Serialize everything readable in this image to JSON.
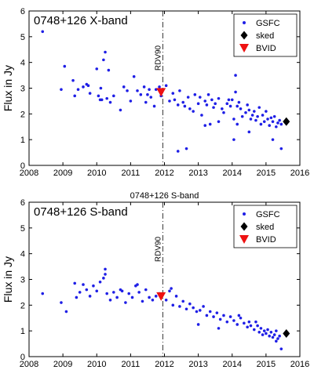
{
  "chart_data": [
    {
      "type": "scatter",
      "title": "",
      "panel_label": "0748+126  X-band",
      "ylabel": "Flux in Jy",
      "xlabel": "",
      "xlim": [
        2008,
        2016
      ],
      "ylim": [
        0,
        6
      ],
      "xticks": [
        "2008",
        "2009",
        "2010",
        "2011",
        "2012",
        "2013",
        "2014",
        "2015",
        "2016"
      ],
      "yticks": [
        "0",
        "1",
        "2",
        "3",
        "4",
        "5",
        "6"
      ],
      "grid": false,
      "legend": "top-right",
      "vline": {
        "x": 2011.95,
        "label": "RDV90"
      },
      "series": [
        {
          "name": "GSFC",
          "marker": "dot",
          "color": "#1f1fe6",
          "x": [
            2008.4,
            2008.95,
            2009.05,
            2009.3,
            2009.35,
            2009.45,
            2009.6,
            2009.7,
            2009.75,
            2009.8,
            2010.0,
            2010.05,
            2010.1,
            2010.12,
            2010.15,
            2010.2,
            2010.25,
            2010.3,
            2010.35,
            2010.4,
            2010.5,
            2010.7,
            2010.8,
            2010.9,
            2011.0,
            2011.1,
            2011.2,
            2011.3,
            2011.4,
            2011.45,
            2011.5,
            2011.55,
            2011.6,
            2011.7,
            2011.75,
            2011.85,
            2011.9,
            2012.05,
            2012.15,
            2012.25,
            2012.3,
            2012.4,
            2012.45,
            2012.55,
            2012.6,
            2012.7,
            2012.75,
            2012.85,
            2012.9,
            2013.0,
            2013.05,
            2013.1,
            2013.2,
            2013.25,
            2013.3,
            2013.4,
            2013.45,
            2013.5,
            2013.6,
            2013.7,
            2013.75,
            2013.85,
            2013.9,
            2013.95,
            2014.0,
            2014.05,
            2014.1,
            2014.15,
            2014.2,
            2014.25,
            2014.3,
            2014.4,
            2014.45,
            2014.5,
            2014.55,
            2014.6,
            2014.65,
            2014.7,
            2014.75,
            2014.8,
            2014.85,
            2014.9,
            2014.95,
            2015.0,
            2015.05,
            2015.1,
            2015.15,
            2015.2,
            2015.25,
            2015.3,
            2015.35,
            2015.4,
            2015.45,
            2012.4,
            2012.65,
            2013.35,
            2014.05,
            2014.15,
            2014.1,
            2013.2,
            2013.6,
            2014.5,
            2015.2,
            2015.45
          ],
          "y": [
            5.2,
            2.95,
            3.85,
            3.3,
            2.7,
            2.95,
            3.05,
            3.15,
            3.1,
            2.8,
            3.75,
            2.7,
            2.55,
            3.0,
            2.55,
            4.1,
            4.4,
            2.6,
            3.7,
            2.45,
            2.7,
            2.15,
            3.05,
            2.9,
            2.5,
            3.45,
            2.9,
            2.75,
            3.05,
            2.45,
            2.75,
            2.95,
            2.65,
            2.3,
            2.95,
            3.05,
            2.7,
            3.1,
            2.5,
            2.8,
            2.55,
            2.35,
            2.9,
            2.45,
            2.3,
            2.65,
            2.2,
            2.1,
            2.75,
            2.4,
            2.65,
            1.95,
            2.5,
            2.35,
            2.75,
            2.55,
            2.25,
            2.4,
            2.6,
            2.2,
            2.05,
            2.4,
            2.55,
            2.3,
            2.55,
            1.8,
            3.5,
            1.6,
            2.45,
            2.2,
            1.9,
            2.05,
            2.35,
            2.15,
            1.8,
            1.95,
            2.1,
            1.75,
            1.9,
            2.25,
            1.6,
            1.95,
            1.7,
            2.1,
            1.8,
            1.55,
            1.85,
            1.7,
            1.9,
            1.5,
            1.65,
            1.75,
            1.6,
            0.55,
            0.65,
            1.6,
            1.0,
            2.3,
            2.85,
            1.55,
            1.7,
            1.3,
            1.0,
            0.65
          ]
        },
        {
          "name": "sked",
          "marker": "diamond",
          "color": "#000000",
          "x": [
            2015.6
          ],
          "y": [
            1.7
          ]
        },
        {
          "name": "BVID",
          "marker": "triangle-down",
          "color": "#ee1111",
          "x": [
            2011.9
          ],
          "y": [
            2.85
          ]
        }
      ]
    },
    {
      "type": "scatter",
      "title": "0748+126 S-band",
      "panel_label": "0748+126  S-band",
      "ylabel": "Flux in Jy",
      "xlabel": "",
      "xlim": [
        2008,
        2016
      ],
      "ylim": [
        0,
        6
      ],
      "xticks": [
        "2008",
        "2009",
        "2010",
        "2011",
        "2012",
        "2013",
        "2014",
        "2015",
        "2016"
      ],
      "yticks": [
        "0",
        "1",
        "2",
        "3",
        "4",
        "5",
        "6"
      ],
      "grid": false,
      "legend": "top-right",
      "vline": {
        "x": 2011.95,
        "label": "RDV90"
      },
      "series": [
        {
          "name": "GSFC",
          "marker": "dot",
          "color": "#1f1fe6",
          "x": [
            2008.4,
            2008.95,
            2009.1,
            2009.35,
            2009.4,
            2009.5,
            2009.6,
            2009.7,
            2009.8,
            2009.9,
            2010.0,
            2010.1,
            2010.2,
            2010.25,
            2010.3,
            2010.4,
            2010.5,
            2010.6,
            2010.75,
            2010.85,
            2010.95,
            2011.05,
            2011.15,
            2011.25,
            2011.35,
            2011.45,
            2011.55,
            2011.65,
            2011.75,
            2011.85,
            2012.05,
            2012.15,
            2012.25,
            2012.35,
            2012.45,
            2012.55,
            2012.65,
            2012.75,
            2012.85,
            2012.95,
            2013.05,
            2013.15,
            2013.25,
            2013.35,
            2013.45,
            2013.55,
            2013.65,
            2013.75,
            2013.85,
            2013.95,
            2014.05,
            2014.15,
            2014.25,
            2014.35,
            2014.45,
            2014.5,
            2014.55,
            2014.65,
            2014.75,
            2014.8,
            2014.85,
            2014.9,
            2014.95,
            2015.0,
            2015.05,
            2015.1,
            2015.15,
            2015.2,
            2015.25,
            2015.3,
            2015.35,
            2015.4,
            2015.45,
            2010.25,
            2010.7,
            2011.2,
            2012.2,
            2013.0,
            2013.6,
            2014.2,
            2014.7,
            2015.3
          ],
          "y": [
            2.45,
            2.1,
            1.75,
            2.85,
            2.3,
            2.5,
            2.8,
            2.6,
            2.35,
            2.75,
            2.55,
            2.9,
            3.05,
            3.4,
            2.45,
            2.2,
            2.5,
            2.3,
            2.55,
            2.1,
            2.45,
            2.3,
            2.75,
            2.5,
            2.15,
            2.6,
            2.3,
            2.2,
            2.35,
            2.45,
            2.2,
            2.55,
            2.0,
            2.35,
            1.95,
            2.15,
            1.85,
            2.05,
            1.9,
            1.75,
            1.8,
            1.95,
            1.6,
            1.75,
            1.55,
            1.7,
            1.45,
            1.6,
            1.35,
            1.55,
            1.4,
            1.25,
            1.5,
            1.3,
            1.15,
            1.35,
            1.2,
            1.05,
            1.2,
            0.95,
            1.1,
            0.85,
            1.0,
            0.9,
            1.05,
            0.8,
            0.95,
            0.75,
            0.85,
            1.0,
            0.7,
            0.8,
            0.3,
            3.2,
            2.6,
            2.8,
            2.65,
            1.25,
            1.1,
            1.6,
            1.35,
            0.6
          ]
        },
        {
          "name": "sked",
          "marker": "diamond",
          "color": "#000000",
          "x": [
            2015.6
          ],
          "y": [
            0.9
          ]
        },
        {
          "name": "BVID",
          "marker": "triangle-down",
          "color": "#ee1111",
          "x": [
            2011.9
          ],
          "y": [
            2.35
          ]
        }
      ]
    }
  ]
}
